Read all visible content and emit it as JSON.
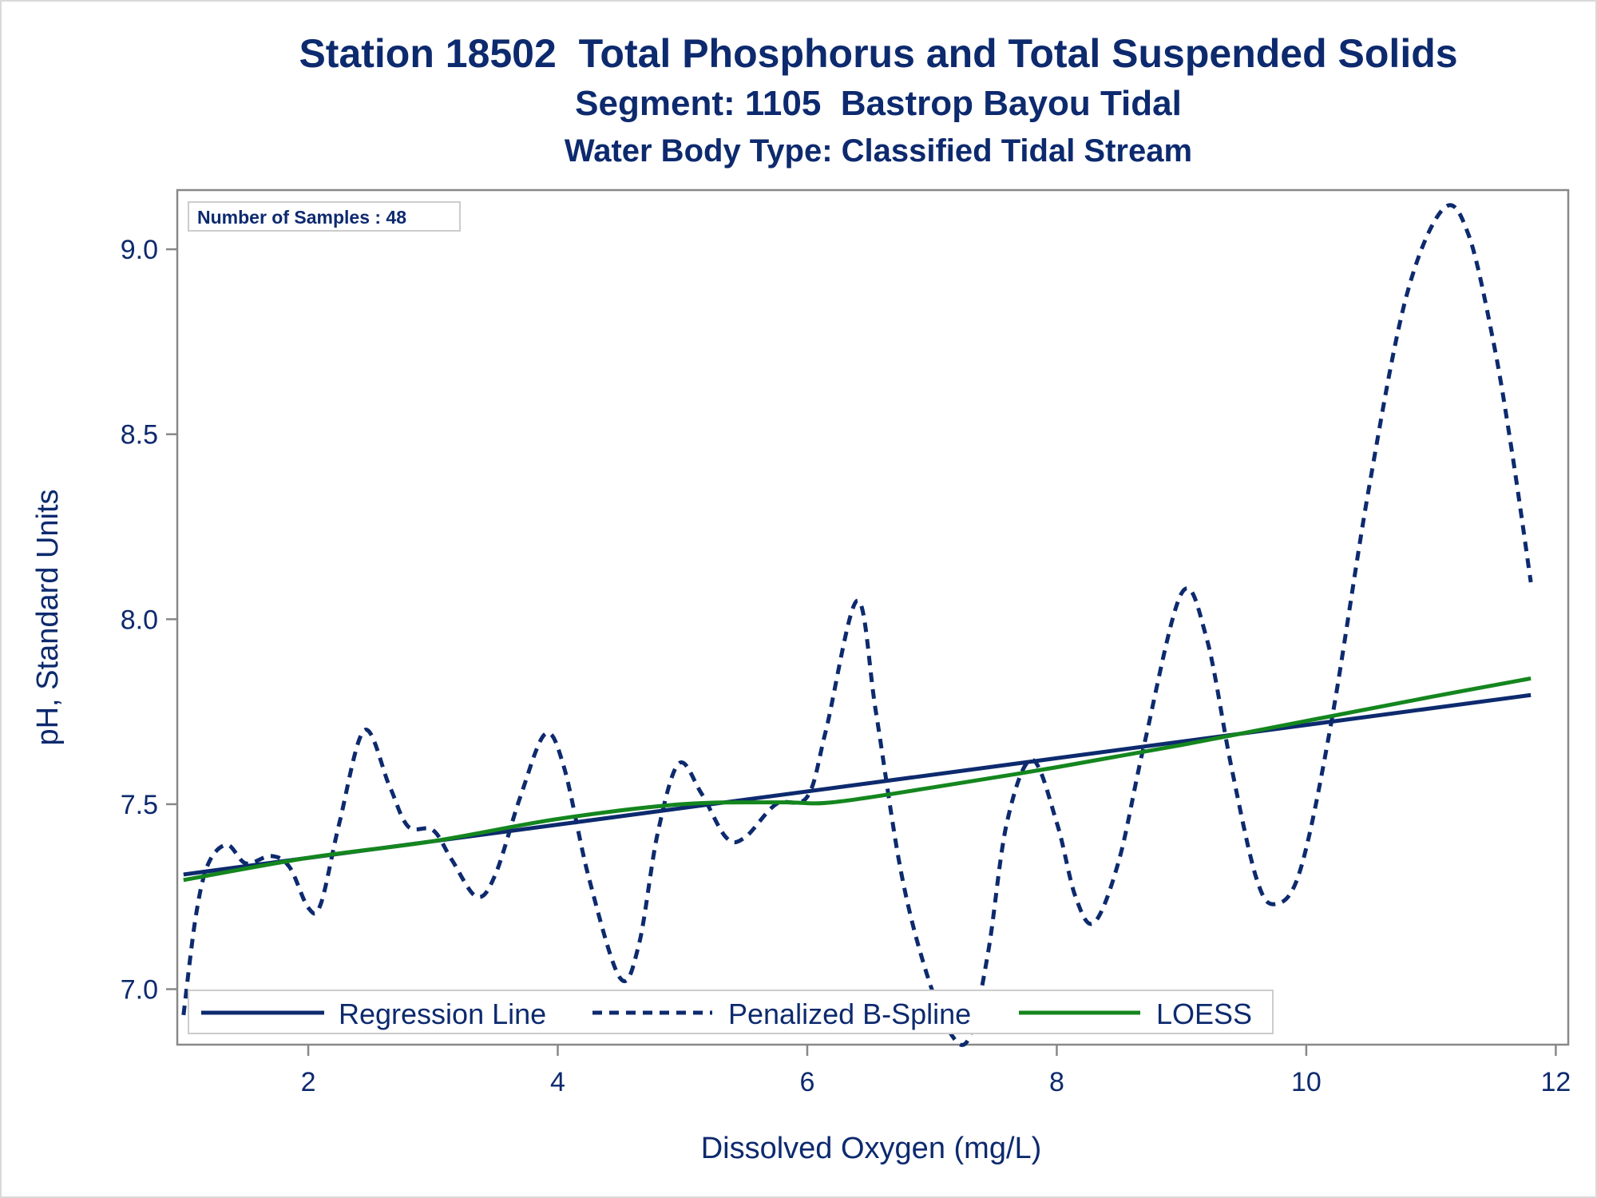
{
  "chart_data": {
    "type": "line",
    "title": "Station 18502  Total Phosphorus and Total Suspended Solids",
    "subtitle": "Segment: 1105  Bastrop Bayou Tidal",
    "subtitle2": "Water Body Type: Classified Tidal Stream",
    "xlabel": "Dissolved Oxygen (mg/L)",
    "ylabel": "pH, Standard Units",
    "xlim": [
      0.95,
      12.1
    ],
    "ylim": [
      6.85,
      9.16
    ],
    "xticks": [
      "2",
      "4",
      "6",
      "8",
      "10",
      "12"
    ],
    "yticks": [
      "7.0",
      "7.5",
      "8.0",
      "8.5",
      "9.0"
    ],
    "grid": false,
    "inset_label": "Number of Samples : 48",
    "legend_position": "bottom-inside",
    "series": [
      {
        "name": "Regression Line",
        "style": "solid",
        "color": "#0d2a6e",
        "x": [
          1.0,
          11.8
        ],
        "y": [
          7.31,
          7.795
        ]
      },
      {
        "name": "Penalized B-Spline",
        "style": "dashed",
        "color": "#0d2a6e",
        "x": [
          1.0,
          1.1,
          1.2,
          1.35,
          1.5,
          1.7,
          1.85,
          2.0,
          2.1,
          2.25,
          2.45,
          2.65,
          2.8,
          3.0,
          3.15,
          3.35,
          3.5,
          3.7,
          3.9,
          4.05,
          4.25,
          4.5,
          4.65,
          4.8,
          4.97,
          5.15,
          5.35,
          5.5,
          5.75,
          6.0,
          6.15,
          6.4,
          6.55,
          6.75,
          6.95,
          7.15,
          7.3,
          7.45,
          7.6,
          7.8,
          8.0,
          8.15,
          8.3,
          8.5,
          8.7,
          9.0,
          9.2,
          9.4,
          9.6,
          9.75,
          9.95,
          10.2,
          10.5,
          10.8,
          11.1,
          11.3,
          11.5,
          11.65,
          11.8
        ],
        "y": [
          6.93,
          7.2,
          7.34,
          7.39,
          7.34,
          7.36,
          7.33,
          7.22,
          7.23,
          7.45,
          7.7,
          7.55,
          7.44,
          7.43,
          7.35,
          7.25,
          7.31,
          7.52,
          7.69,
          7.6,
          7.3,
          7.03,
          7.12,
          7.42,
          7.61,
          7.53,
          7.41,
          7.41,
          7.5,
          7.52,
          7.7,
          8.05,
          7.75,
          7.32,
          7.05,
          6.88,
          6.87,
          7.1,
          7.45,
          7.62,
          7.45,
          7.25,
          7.18,
          7.35,
          7.66,
          8.07,
          7.95,
          7.6,
          7.3,
          7.23,
          7.32,
          7.72,
          8.35,
          8.87,
          9.11,
          9.04,
          8.75,
          8.45,
          8.1
        ]
      },
      {
        "name": "LOESS",
        "style": "solid",
        "color": "#14861e",
        "x": [
          1.0,
          2.0,
          3.0,
          4.0,
          5.0,
          5.8,
          6.2,
          7.0,
          8.0,
          9.0,
          10.0,
          11.0,
          11.8
        ],
        "y": [
          7.295,
          7.355,
          7.4,
          7.46,
          7.5,
          7.505,
          7.505,
          7.545,
          7.6,
          7.66,
          7.725,
          7.79,
          7.84
        ]
      }
    ]
  }
}
